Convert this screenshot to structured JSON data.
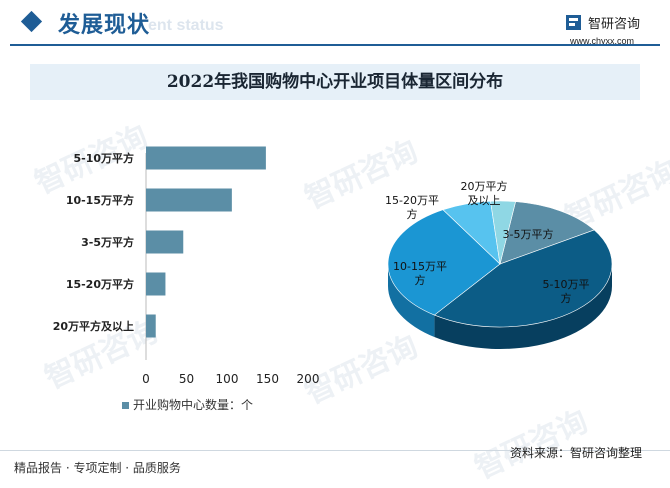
{
  "header": {
    "title": "发展现状",
    "subtitle_en": "ent status",
    "brand_name": "智研咨询",
    "brand_url": "www.chyxx.com"
  },
  "chart_title": "2022年我国购物中心开业项目体量区间分布",
  "watermark_text": "智研咨询",
  "chart_data": [
    {
      "type": "bar",
      "orientation": "horizontal",
      "categories": [
        "5-10万平方",
        "10-15万平方",
        "3-5万平方",
        "15-20万平方",
        "20万平方及以上"
      ],
      "series": [
        {
          "name": "开业购物中心数量：个",
          "values": [
            148,
            106,
            46,
            24,
            12
          ]
        }
      ],
      "xlim": [
        0,
        200
      ],
      "xticks": [
        0,
        50,
        100,
        150,
        200
      ],
      "grid": false,
      "legend": "bottom",
      "color": "#5b8ea6"
    },
    {
      "type": "pie",
      "style": "3d",
      "categories": [
        "3-5万平方",
        "5-10万平方",
        "10-15万平方",
        "15-20万平方",
        "20万平方及以上"
      ],
      "values": [
        46,
        148,
        106,
        24,
        12
      ],
      "colors": [
        "#5b8ea6",
        "#0c5c86",
        "#1b96d3",
        "#57c3ef",
        "#8fd7e4"
      ],
      "side_colors": [
        "#3f6d82",
        "#073f5f",
        "#1270a2",
        "#3ca2cc",
        "#6fb6c3"
      ]
    }
  ],
  "pie_labels": [
    {
      "lines": [
        "3-5万平方"
      ]
    },
    {
      "lines": [
        "5-10万平",
        "方"
      ]
    },
    {
      "lines": [
        "10-15万平",
        "方"
      ]
    },
    {
      "lines": [
        "15-20万平",
        "方"
      ]
    },
    {
      "lines": [
        "20万平方",
        "及以上"
      ]
    }
  ],
  "footer": {
    "left": "精品报告 · 专项定制 · 品质服务",
    "right": "资料来源：智研咨询整理"
  }
}
